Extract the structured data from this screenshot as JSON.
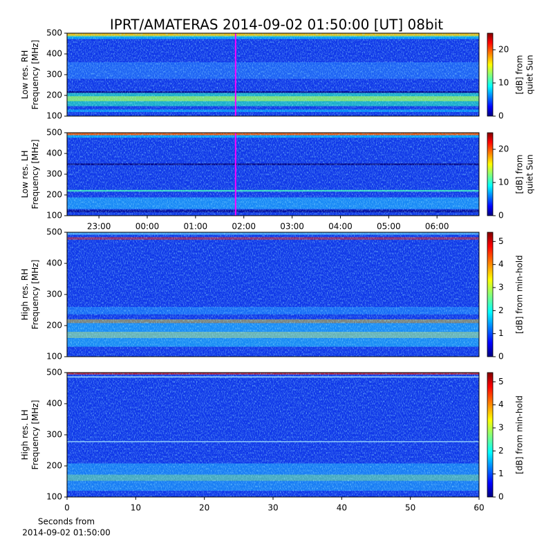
{
  "title": "IPRT/AMATERAS 2014-09-02 01:50:00 [UT]   08bit",
  "chart_data": [
    {
      "type": "heatmap",
      "colormap": "jet",
      "ylabel": [
        "Low res. RH",
        "Frequency [MHz]"
      ],
      "xlim": [
        22.34,
        30.87
      ],
      "ylim": [
        100,
        500
      ],
      "yticks": [
        100,
        200,
        300,
        400,
        500
      ],
      "marker_x": 25.83,
      "marker_color": "#ff00ff",
      "clim": [
        0,
        25
      ],
      "cticks": [
        0,
        10,
        20
      ],
      "clabel": [
        "[dB] from",
        "quiet Sun"
      ]
    },
    {
      "type": "heatmap",
      "colormap": "jet",
      "ylabel": [
        "Low res. LH",
        "Frequency [MHz]"
      ],
      "xlim": [
        22.34,
        30.87
      ],
      "ylim": [
        100,
        500
      ],
      "yticks": [
        100,
        200,
        300,
        400,
        500
      ],
      "xticks": [
        {
          "value": 23,
          "label": "23:00"
        },
        {
          "value": 24,
          "label": "00:00"
        },
        {
          "value": 25,
          "label": "01:00"
        },
        {
          "value": 26,
          "label": "02:00"
        },
        {
          "value": 27,
          "label": "03:00"
        },
        {
          "value": 28,
          "label": "04:00"
        },
        {
          "value": 29,
          "label": "05:00"
        },
        {
          "value": 30,
          "label": "06:00"
        }
      ],
      "marker_x": 25.83,
      "marker_color": "#ff00ff",
      "clim": [
        0,
        25
      ],
      "cticks": [
        0,
        10,
        20
      ],
      "clabel": [
        "[dB] from",
        "quiet Sun"
      ]
    },
    {
      "type": "heatmap",
      "colormap": "jet",
      "ylabel": [
        "High res. RH",
        "Frequency [MHz]"
      ],
      "xlim": [
        0,
        60
      ],
      "ylim": [
        100,
        500
      ],
      "yticks": [
        100,
        200,
        300,
        400,
        500
      ],
      "clim": [
        0,
        5.4
      ],
      "cticks": [
        0,
        1,
        2,
        3,
        4,
        5
      ],
      "clabel": [
        "[dB] from min-hold"
      ]
    },
    {
      "type": "heatmap",
      "colormap": "jet",
      "ylabel": [
        "High res. LH",
        "Frequency [MHz]"
      ],
      "xlabel": [
        "Seconds from",
        "2014-09-02 01:50:00"
      ],
      "xlim": [
        0,
        60
      ],
      "ylim": [
        100,
        500
      ],
      "yticks": [
        100,
        200,
        300,
        400,
        500
      ],
      "xticks": [
        0,
        10,
        20,
        30,
        40,
        50,
        60
      ],
      "clim": [
        0,
        5.4
      ],
      "cticks": [
        0,
        1,
        2,
        3,
        4,
        5
      ],
      "clabel": [
        "[dB] from min-hold"
      ]
    }
  ]
}
